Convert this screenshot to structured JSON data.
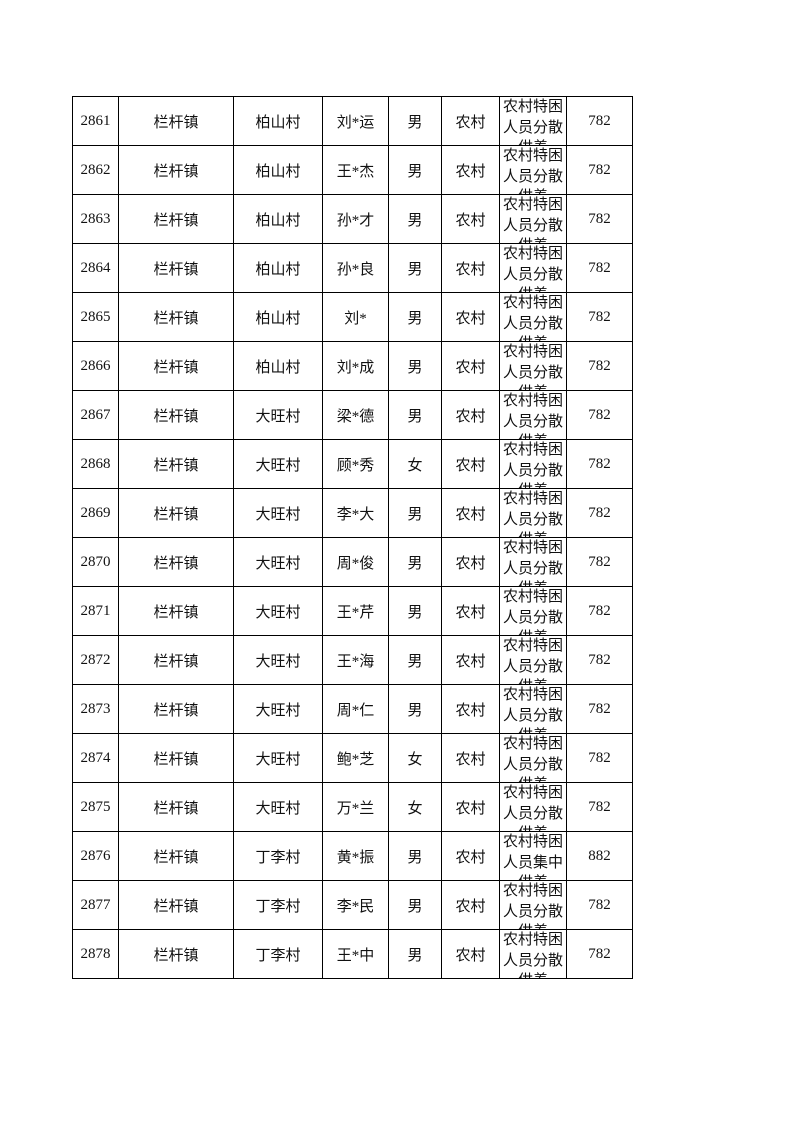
{
  "rows": [
    {
      "no": "2861",
      "town": "栏杆镇",
      "village": "柏山村",
      "name": "刘*运",
      "gender": "男",
      "household": "农村",
      "type": "农村特困人员分散供养",
      "amount": "782"
    },
    {
      "no": "2862",
      "town": "栏杆镇",
      "village": "柏山村",
      "name": "王*杰",
      "gender": "男",
      "household": "农村",
      "type": "农村特困人员分散供养",
      "amount": "782"
    },
    {
      "no": "2863",
      "town": "栏杆镇",
      "village": "柏山村",
      "name": "孙*才",
      "gender": "男",
      "household": "农村",
      "type": "农村特困人员分散供养",
      "amount": "782"
    },
    {
      "no": "2864",
      "town": "栏杆镇",
      "village": "柏山村",
      "name": "孙*良",
      "gender": "男",
      "household": "农村",
      "type": "农村特困人员分散供养",
      "amount": "782"
    },
    {
      "no": "2865",
      "town": "栏杆镇",
      "village": "柏山村",
      "name": "刘*",
      "gender": "男",
      "household": "农村",
      "type": "农村特困人员分散供养",
      "amount": "782"
    },
    {
      "no": "2866",
      "town": "栏杆镇",
      "village": "柏山村",
      "name": "刘*成",
      "gender": "男",
      "household": "农村",
      "type": "农村特困人员分散供养",
      "amount": "782"
    },
    {
      "no": "2867",
      "town": "栏杆镇",
      "village": "大旺村",
      "name": "梁*德",
      "gender": "男",
      "household": "农村",
      "type": "农村特困人员分散供养",
      "amount": "782"
    },
    {
      "no": "2868",
      "town": "栏杆镇",
      "village": "大旺村",
      "name": "顾*秀",
      "gender": "女",
      "household": "农村",
      "type": "农村特困人员分散供养",
      "amount": "782"
    },
    {
      "no": "2869",
      "town": "栏杆镇",
      "village": "大旺村",
      "name": "李*大",
      "gender": "男",
      "household": "农村",
      "type": "农村特困人员分散供养",
      "amount": "782"
    },
    {
      "no": "2870",
      "town": "栏杆镇",
      "village": "大旺村",
      "name": "周*俊",
      "gender": "男",
      "household": "农村",
      "type": "农村特困人员分散供养",
      "amount": "782"
    },
    {
      "no": "2871",
      "town": "栏杆镇",
      "village": "大旺村",
      "name": "王*芹",
      "gender": "男",
      "household": "农村",
      "type": "农村特困人员分散供养",
      "amount": "782"
    },
    {
      "no": "2872",
      "town": "栏杆镇",
      "village": "大旺村",
      "name": "王*海",
      "gender": "男",
      "household": "农村",
      "type": "农村特困人员分散供养",
      "amount": "782"
    },
    {
      "no": "2873",
      "town": "栏杆镇",
      "village": "大旺村",
      "name": "周*仁",
      "gender": "男",
      "household": "农村",
      "type": "农村特困人员分散供养",
      "amount": "782"
    },
    {
      "no": "2874",
      "town": "栏杆镇",
      "village": "大旺村",
      "name": "鲍*芝",
      "gender": "女",
      "household": "农村",
      "type": "农村特困人员分散供养",
      "amount": "782"
    },
    {
      "no": "2875",
      "town": "栏杆镇",
      "village": "大旺村",
      "name": "万*兰",
      "gender": "女",
      "household": "农村",
      "type": "农村特困人员分散供养",
      "amount": "782"
    },
    {
      "no": "2876",
      "town": "栏杆镇",
      "village": "丁李村",
      "name": "黄*振",
      "gender": "男",
      "household": "农村",
      "type": "农村特困人员集中供养",
      "amount": "882"
    },
    {
      "no": "2877",
      "town": "栏杆镇",
      "village": "丁李村",
      "name": "李*民",
      "gender": "男",
      "household": "农村",
      "type": "农村特困人员分散供养",
      "amount": "782"
    },
    {
      "no": "2878",
      "town": "栏杆镇",
      "village": "丁李村",
      "name": "王*中",
      "gender": "男",
      "household": "农村",
      "type": "农村特困人员分散供养",
      "amount": "782"
    }
  ]
}
